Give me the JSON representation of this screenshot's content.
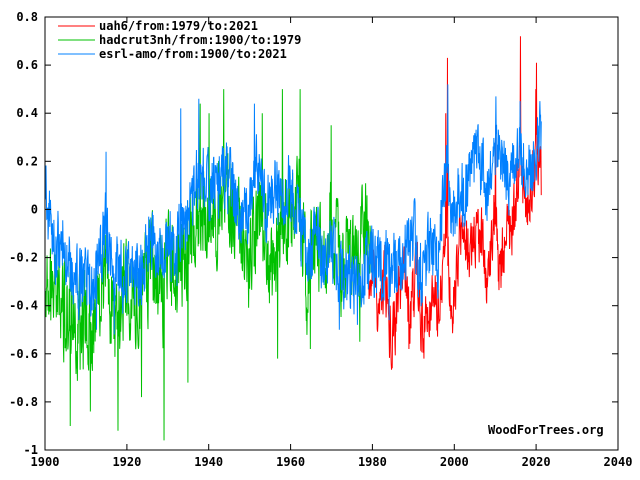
{
  "watermark": {
    "text": "WoodForTrees.org",
    "color": "#000000"
  },
  "chart_data": {
    "type": "line",
    "title": "",
    "xlabel": "",
    "ylabel": "",
    "grid": false,
    "background": "#ffffff",
    "axis_color": "#000000",
    "legend_position": "top-left",
    "x_axis": {
      "min": 1900,
      "max": 2040,
      "ticks": [
        1900,
        1920,
        1940,
        1960,
        1980,
        2000,
        2020,
        2040
      ],
      "tick_labels": [
        "1900",
        "1920",
        "1940",
        "1960",
        "1980",
        "2000",
        "2020",
        "2040"
      ]
    },
    "y_axis": {
      "min": -1,
      "max": 0.8,
      "ticks": [
        0.8,
        0.6,
        0.4,
        0.2,
        0,
        -0.2,
        -0.4,
        -0.6,
        -0.8,
        -1
      ],
      "tick_labels": [
        "0.8",
        "0.6",
        "0.4",
        "0.2",
        "0",
        "-0.2",
        "-0.4",
        "-0.6",
        "-0.8",
        "-1"
      ]
    },
    "sampling": "monthly",
    "series": [
      {
        "label": "uah6/from:1979/to:2021",
        "color": "#ff0000",
        "start": 1979.0,
        "end": 2021.33,
        "noise_amp": 0.12,
        "annual_anchors": [
          [
            1979,
            -0.32
          ],
          [
            1980,
            -0.3
          ],
          [
            1981,
            -0.34
          ],
          [
            1982,
            -0.44
          ],
          [
            1983,
            -0.28
          ],
          [
            1984,
            -0.5
          ],
          [
            1985,
            -0.5
          ],
          [
            1986,
            -0.42
          ],
          [
            1987,
            -0.28
          ],
          [
            1988,
            -0.3
          ],
          [
            1989,
            -0.44
          ],
          [
            1990,
            -0.34
          ],
          [
            1991,
            -0.28
          ],
          [
            1992,
            -0.5
          ],
          [
            1993,
            -0.5
          ],
          [
            1994,
            -0.4
          ],
          [
            1995,
            -0.3
          ],
          [
            1996,
            -0.4
          ],
          [
            1997,
            -0.32
          ],
          [
            1998,
            0.05
          ],
          [
            1999,
            -0.4
          ],
          [
            2000,
            -0.35
          ],
          [
            2001,
            -0.2
          ],
          [
            2002,
            -0.1
          ],
          [
            2003,
            -0.12
          ],
          [
            2004,
            -0.18
          ],
          [
            2005,
            -0.08
          ],
          [
            2006,
            -0.16
          ],
          [
            2007,
            -0.12
          ],
          [
            2008,
            -0.35
          ],
          [
            2009,
            -0.15
          ],
          [
            2010,
            0.0
          ],
          [
            2011,
            -0.25
          ],
          [
            2012,
            -0.15
          ],
          [
            2013,
            -0.1
          ],
          [
            2014,
            -0.08
          ],
          [
            2015,
            0.02
          ],
          [
            2016,
            0.28
          ],
          [
            2017,
            0.1
          ],
          [
            2018,
            0.02
          ],
          [
            2019,
            0.15
          ],
          [
            2020,
            0.25
          ],
          [
            2021.3,
            0.1
          ]
        ],
        "monthly_extremes": [
          [
            1998.3,
            0.63
          ],
          [
            2016.15,
            0.72
          ],
          [
            2020.1,
            0.61
          ],
          [
            1984.8,
            -0.66
          ],
          [
            1992.6,
            -0.62
          ],
          [
            1988.9,
            -0.58
          ],
          [
            1997.9,
            0.4
          ],
          [
            2010.1,
            0.35
          ],
          [
            2019.9,
            0.5
          ]
        ]
      },
      {
        "label": "hadcrut3nh/from:1900/to:1979",
        "color": "#00c000",
        "start": 1900.0,
        "end": 1979.92,
        "noise_amp": 0.18,
        "annual_anchors": [
          [
            1900,
            -0.28
          ],
          [
            1902,
            -0.38
          ],
          [
            1904,
            -0.44
          ],
          [
            1906,
            -0.38
          ],
          [
            1908,
            -0.5
          ],
          [
            1910,
            -0.46
          ],
          [
            1912,
            -0.5
          ],
          [
            1914,
            -0.28
          ],
          [
            1915,
            -0.22
          ],
          [
            1917,
            -0.5
          ],
          [
            1918,
            -0.38
          ],
          [
            1920,
            -0.32
          ],
          [
            1922,
            -0.34
          ],
          [
            1924,
            -0.34
          ],
          [
            1926,
            -0.22
          ],
          [
            1928,
            -0.28
          ],
          [
            1929,
            -0.4
          ],
          [
            1930,
            -0.2
          ],
          [
            1932,
            -0.28
          ],
          [
            1934,
            -0.18
          ],
          [
            1936,
            -0.12
          ],
          [
            1938,
            0.02
          ],
          [
            1940,
            -0.02
          ],
          [
            1942,
            -0.06
          ],
          [
            1944,
            0.12
          ],
          [
            1946,
            -0.04
          ],
          [
            1948,
            -0.08
          ],
          [
            1950,
            -0.22
          ],
          [
            1952,
            0.0
          ],
          [
            1954,
            -0.14
          ],
          [
            1956,
            -0.28
          ],
          [
            1958,
            0.02
          ],
          [
            1960,
            -0.02
          ],
          [
            1962,
            0.02
          ],
          [
            1964,
            -0.3
          ],
          [
            1966,
            -0.14
          ],
          [
            1968,
            -0.18
          ],
          [
            1970,
            -0.04
          ],
          [
            1972,
            -0.24
          ],
          [
            1974,
            -0.18
          ],
          [
            1976,
            -0.28
          ],
          [
            1978,
            -0.08
          ],
          [
            1979.9,
            -0.1
          ]
        ],
        "monthly_extremes": [
          [
            1906.2,
            -0.9
          ],
          [
            1911.1,
            -0.84
          ],
          [
            1917.8,
            -0.92
          ],
          [
            1923.6,
            -0.78
          ],
          [
            1929.1,
            -0.96
          ],
          [
            1934.9,
            -0.72
          ],
          [
            1937.9,
            0.44
          ],
          [
            1940.1,
            0.4
          ],
          [
            1943.7,
            0.5
          ],
          [
            1953.1,
            0.4
          ],
          [
            1958.0,
            0.5
          ],
          [
            1962.3,
            0.5
          ],
          [
            1956.8,
            -0.62
          ],
          [
            1964.8,
            -0.58
          ],
          [
            1976.9,
            -0.55
          ],
          [
            1969.9,
            0.35
          ]
        ]
      },
      {
        "label": "esrl-amo/from:1900/to:2021",
        "color": "#0080ff",
        "start": 1900.0,
        "end": 2021.33,
        "noise_amp": 0.13,
        "annual_anchors": [
          [
            1900,
            0.08
          ],
          [
            1901,
            -0.02
          ],
          [
            1902,
            -0.18
          ],
          [
            1904,
            -0.12
          ],
          [
            1906,
            -0.22
          ],
          [
            1908,
            -0.3
          ],
          [
            1910,
            -0.28
          ],
          [
            1912,
            -0.34
          ],
          [
            1914,
            -0.15
          ],
          [
            1915,
            -0.05
          ],
          [
            1916,
            -0.26
          ],
          [
            1918,
            -0.24
          ],
          [
            1920,
            -0.3
          ],
          [
            1922,
            -0.28
          ],
          [
            1924,
            -0.24
          ],
          [
            1926,
            -0.08
          ],
          [
            1928,
            -0.22
          ],
          [
            1930,
            -0.1
          ],
          [
            1932,
            -0.24
          ],
          [
            1933,
            -0.05
          ],
          [
            1934,
            -0.12
          ],
          [
            1936,
            0.05
          ],
          [
            1938,
            0.18
          ],
          [
            1940,
            0.1
          ],
          [
            1942,
            0.12
          ],
          [
            1944,
            0.15
          ],
          [
            1946,
            0.08
          ],
          [
            1948,
            -0.05
          ],
          [
            1950,
            0.02
          ],
          [
            1952,
            0.2
          ],
          [
            1954,
            0.0
          ],
          [
            1956,
            0.1
          ],
          [
            1958,
            0.08
          ],
          [
            1960,
            0.1
          ],
          [
            1962,
            -0.05
          ],
          [
            1964,
            -0.18
          ],
          [
            1966,
            -0.12
          ],
          [
            1968,
            -0.22
          ],
          [
            1970,
            -0.15
          ],
          [
            1972,
            -0.3
          ],
          [
            1974,
            -0.26
          ],
          [
            1976,
            -0.3
          ],
          [
            1978,
            -0.25
          ],
          [
            1980,
            -0.2
          ],
          [
            1982,
            -0.26
          ],
          [
            1984,
            -0.22
          ],
          [
            1986,
            -0.26
          ],
          [
            1988,
            -0.16
          ],
          [
            1990,
            -0.1
          ],
          [
            1992,
            -0.26
          ],
          [
            1994,
            -0.16
          ],
          [
            1996,
            -0.2
          ],
          [
            1998,
            0.15
          ],
          [
            1999,
            -0.05
          ],
          [
            2000,
            0.0
          ],
          [
            2002,
            0.05
          ],
          [
            2004,
            0.15
          ],
          [
            2006,
            0.2
          ],
          [
            2008,
            0.1
          ],
          [
            2010,
            0.28
          ],
          [
            2012,
            0.2
          ],
          [
            2014,
            0.1
          ],
          [
            2016,
            0.25
          ],
          [
            2017,
            0.18
          ],
          [
            2018,
            0.12
          ],
          [
            2020,
            0.25
          ],
          [
            2021.3,
            0.3
          ]
        ],
        "monthly_extremes": [
          [
            1914.9,
            0.24
          ],
          [
            1933.2,
            0.42
          ],
          [
            1937.6,
            0.46
          ],
          [
            1951.2,
            0.44
          ],
          [
            1998.4,
            0.52
          ],
          [
            2010.2,
            0.47
          ],
          [
            2016.1,
            0.45
          ],
          [
            2020.9,
            0.45
          ],
          [
            1912.6,
            -0.5
          ],
          [
            1916.9,
            -0.52
          ],
          [
            1971.9,
            -0.5
          ],
          [
            1976.3,
            -0.48
          ],
          [
            1984.1,
            -0.46
          ]
        ]
      }
    ]
  }
}
